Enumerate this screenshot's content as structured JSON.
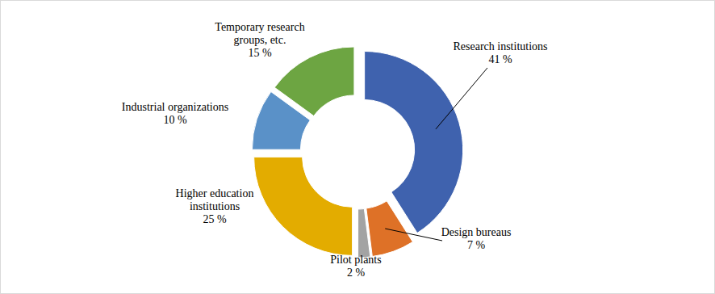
{
  "chart_data": {
    "type": "pie",
    "categories": [
      "Research institutions",
      "Design bureaus",
      "Pilot plants",
      "Higher education institutions",
      "Industrial organizations",
      "Temporary research groups, etc."
    ],
    "values": [
      41,
      7,
      2,
      25,
      10,
      15
    ],
    "value_labels": [
      "41 %",
      "7 %",
      "2 %",
      "25 %",
      "10 %",
      "15 %"
    ],
    "colors": [
      "#3f62ae",
      "#de7127",
      "#a3a3a3",
      "#e3ac00",
      "#5a91c8",
      "#6da542"
    ],
    "data_labels": true
  }
}
